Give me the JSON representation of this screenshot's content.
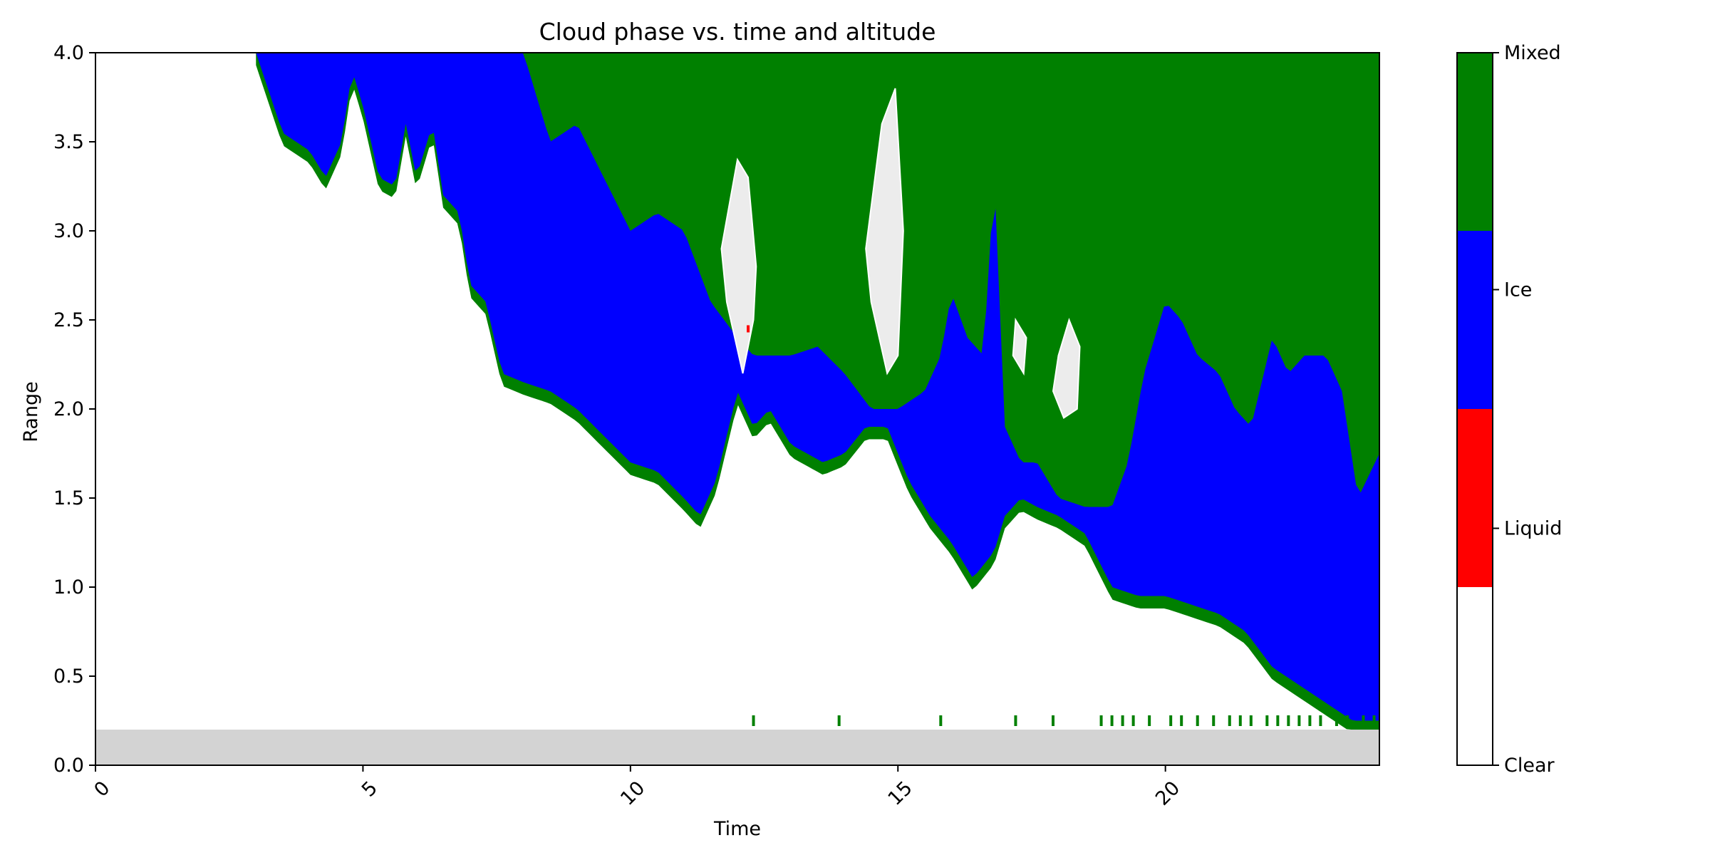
{
  "chart_data": {
    "type": "heatmap",
    "title": "Cloud phase vs. time and altitude",
    "xlabel": "Time",
    "ylabel": "Range",
    "xlim": [
      0,
      24
    ],
    "ylim": [
      0,
      4
    ],
    "x_ticks": [
      "0",
      "5",
      "10",
      "15",
      "20"
    ],
    "y_ticks": [
      "0.0",
      "0.5",
      "1.0",
      "1.5",
      "2.0",
      "2.5",
      "3.0",
      "3.5",
      "4.0"
    ],
    "grid": false,
    "no_data_color": "#d3d3d3",
    "no_data_below_range": 0.2,
    "categories": [
      {
        "name": "Clear",
        "color": "#ffffff"
      },
      {
        "name": "Liquid",
        "color": "#ff0000"
      },
      {
        "name": "Ice",
        "color": "#0000ff"
      },
      {
        "name": "Mixed",
        "color": "#008000"
      }
    ],
    "ice_base": {
      "x": [
        3.0,
        3.5,
        4.0,
        4.3,
        4.6,
        4.8,
        5.0,
        5.3,
        5.6,
        5.8,
        6.0,
        6.3,
        6.5,
        6.8,
        7.0,
        7.3,
        7.6,
        8.0,
        8.5,
        9.0,
        9.5,
        10.0,
        10.5,
        11.0,
        11.3,
        11.6,
        12.0,
        12.3,
        12.6,
        13.0,
        13.3,
        13.6,
        14.0,
        14.4,
        14.8,
        15.2,
        15.6,
        16.0,
        16.4,
        16.8,
        17.0,
        17.3,
        17.6,
        18.0,
        18.5,
        19.0,
        19.5,
        20.0,
        20.5,
        21.0,
        21.5,
        22.0,
        22.5,
        23.0,
        23.5,
        24.0
      ],
      "y": [
        4.0,
        3.55,
        3.45,
        3.3,
        3.5,
        3.9,
        3.7,
        3.3,
        3.25,
        3.6,
        3.3,
        3.6,
        3.2,
        3.1,
        2.7,
        2.6,
        2.2,
        2.15,
        2.1,
        2.0,
        1.85,
        1.7,
        1.65,
        1.5,
        1.4,
        1.6,
        2.1,
        1.9,
        2.0,
        1.8,
        1.75,
        1.7,
        1.75,
        1.9,
        1.9,
        1.6,
        1.4,
        1.25,
        1.05,
        1.2,
        1.4,
        1.5,
        1.45,
        1.4,
        1.3,
        1.0,
        0.95,
        0.95,
        0.9,
        0.85,
        0.75,
        0.55,
        0.45,
        0.35,
        0.25,
        0.25
      ]
    },
    "ice_top": {
      "x": [
        3.0,
        3.6,
        4.0,
        4.5,
        5.0,
        5.5,
        6.0,
        6.5,
        7.0,
        7.5,
        8.0,
        8.5,
        9.0,
        9.5,
        10.0,
        10.5,
        11.0,
        11.5,
        12.0,
        12.3,
        12.6,
        13.0,
        13.5,
        14.0,
        14.5,
        15.0,
        15.5,
        15.8,
        16.0,
        16.3,
        16.6,
        16.8,
        17.0,
        17.3,
        17.6,
        18.0,
        18.5,
        19.0,
        19.3,
        19.6,
        20.0,
        20.3,
        20.6,
        21.0,
        21.3,
        21.6,
        22.0,
        22.3,
        22.6,
        23.0,
        23.3,
        23.6,
        24.0
      ],
      "y": [
        4.0,
        4.0,
        4.0,
        4.0,
        4.0,
        4.0,
        4.0,
        4.0,
        4.0,
        4.0,
        4.0,
        3.5,
        3.6,
        3.3,
        3.0,
        3.1,
        3.0,
        2.6,
        2.4,
        2.3,
        2.3,
        2.3,
        2.35,
        2.2,
        2.0,
        2.0,
        2.1,
        2.3,
        2.65,
        2.4,
        2.3,
        3.3,
        1.9,
        1.7,
        1.7,
        1.5,
        1.45,
        1.45,
        1.7,
        2.2,
        2.6,
        2.5,
        2.3,
        2.2,
        2.0,
        1.9,
        2.4,
        2.2,
        2.3,
        2.3,
        2.1,
        1.5,
        1.75
      ]
    },
    "clear_patches": [
      {
        "x": [
          11.7,
          12.0,
          12.2,
          12.35,
          12.3,
          12.1,
          11.8
        ],
        "y": [
          2.9,
          3.4,
          3.3,
          2.8,
          2.5,
          2.2,
          2.6
        ]
      },
      {
        "x": [
          14.4,
          14.7,
          14.95,
          15.1,
          15.0,
          14.8,
          14.5
        ],
        "y": [
          2.9,
          3.6,
          3.8,
          3.0,
          2.3,
          2.2,
          2.6
        ]
      },
      {
        "x": [
          17.2,
          17.4,
          17.35,
          17.15
        ],
        "y": [
          2.5,
          2.4,
          2.2,
          2.3
        ]
      },
      {
        "x": [
          18.0,
          18.2,
          18.4,
          18.35,
          18.1,
          17.9
        ],
        "y": [
          2.3,
          2.5,
          2.35,
          2.0,
          1.95,
          2.1
        ]
      }
    ],
    "liquid_points": [
      {
        "x": 12.2,
        "y": 2.45
      }
    ],
    "surface_mixed_times": [
      12.3,
      13.9,
      15.8,
      17.2,
      17.9,
      18.8,
      19.0,
      19.2,
      19.4,
      19.7,
      20.1,
      20.3,
      20.6,
      20.9,
      21.2,
      21.4,
      21.6,
      21.9,
      22.1,
      22.3,
      22.5,
      22.7,
      22.9,
      23.2,
      23.4,
      23.7,
      23.9
    ]
  }
}
